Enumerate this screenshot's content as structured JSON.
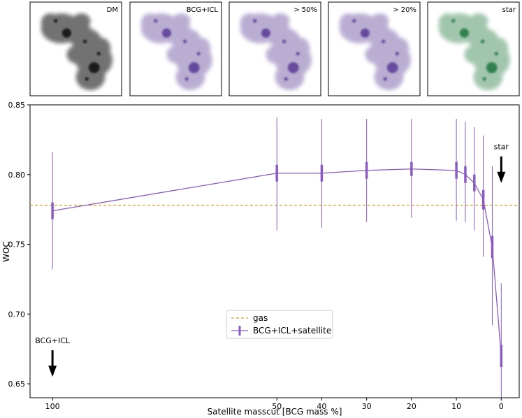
{
  "thumbnails": [
    {
      "label": "DM",
      "color": "#000000"
    },
    {
      "label": "BCG+ICL",
      "color": "#4b2a8c"
    },
    {
      "label": "> 50%",
      "color": "#4b2a8c"
    },
    {
      "label": "> 20%",
      "color": "#4b2a8c"
    },
    {
      "label": "star",
      "color": "#0b6b2e"
    }
  ],
  "chart_data": {
    "type": "line",
    "xlabel": "Satellite masscut [BCG mass %]",
    "ylabel": "WOC",
    "xlim": [
      105,
      -4
    ],
    "ylim": [
      0.64,
      0.85
    ],
    "x_ticks": [
      100,
      50,
      40,
      30,
      20,
      10,
      0
    ],
    "y_ticks": [
      0.65,
      0.7,
      0.75,
      0.8,
      0.85
    ],
    "y_tick_labels": [
      "0.65",
      "0.70",
      "0.75",
      "0.80",
      "0.85"
    ],
    "grid": false,
    "legend_position": "lower-center",
    "series": [
      {
        "name": "BCG+ICL+satellite",
        "color": "#8a5cc0",
        "points": [
          {
            "x": 100,
            "y": 0.774,
            "err_inner": 0.006,
            "err_low": 0.732,
            "err_high": 0.816
          },
          {
            "x": 50,
            "y": 0.801,
            "err_inner": 0.006,
            "err_low": 0.76,
            "err_high": 0.841
          },
          {
            "x": 40,
            "y": 0.801,
            "err_inner": 0.006,
            "err_low": 0.762,
            "err_high": 0.84
          },
          {
            "x": 30,
            "y": 0.803,
            "err_inner": 0.006,
            "err_low": 0.766,
            "err_high": 0.84
          },
          {
            "x": 20,
            "y": 0.804,
            "err_inner": 0.005,
            "err_low": 0.769,
            "err_high": 0.84
          },
          {
            "x": 10,
            "y": 0.803,
            "err_inner": 0.006,
            "err_low": 0.767,
            "err_high": 0.84
          },
          {
            "x": 8,
            "y": 0.8,
            "err_inner": 0.006,
            "err_low": 0.766,
            "err_high": 0.838
          },
          {
            "x": 6,
            "y": 0.794,
            "err_inner": 0.006,
            "err_low": 0.76,
            "err_high": 0.834
          },
          {
            "x": 4,
            "y": 0.782,
            "err_inner": 0.007,
            "err_low": 0.741,
            "err_high": 0.828
          },
          {
            "x": 2,
            "y": 0.748,
            "err_inner": 0.008,
            "err_low": 0.692,
            "err_high": 0.806
          },
          {
            "x": 0,
            "y": 0.67,
            "err_inner": 0.008,
            "err_low": 0.619,
            "err_high": 0.722
          }
        ]
      },
      {
        "name": "gas",
        "color": "#e69a2e",
        "style": "dashed",
        "y": 0.778
      }
    ],
    "annotations": [
      {
        "text": "BCG+ICL",
        "x": 100,
        "arrow_tip_y": 0.655
      },
      {
        "text": "star",
        "x": 0,
        "arrow_tip_y": 0.794
      }
    ]
  }
}
